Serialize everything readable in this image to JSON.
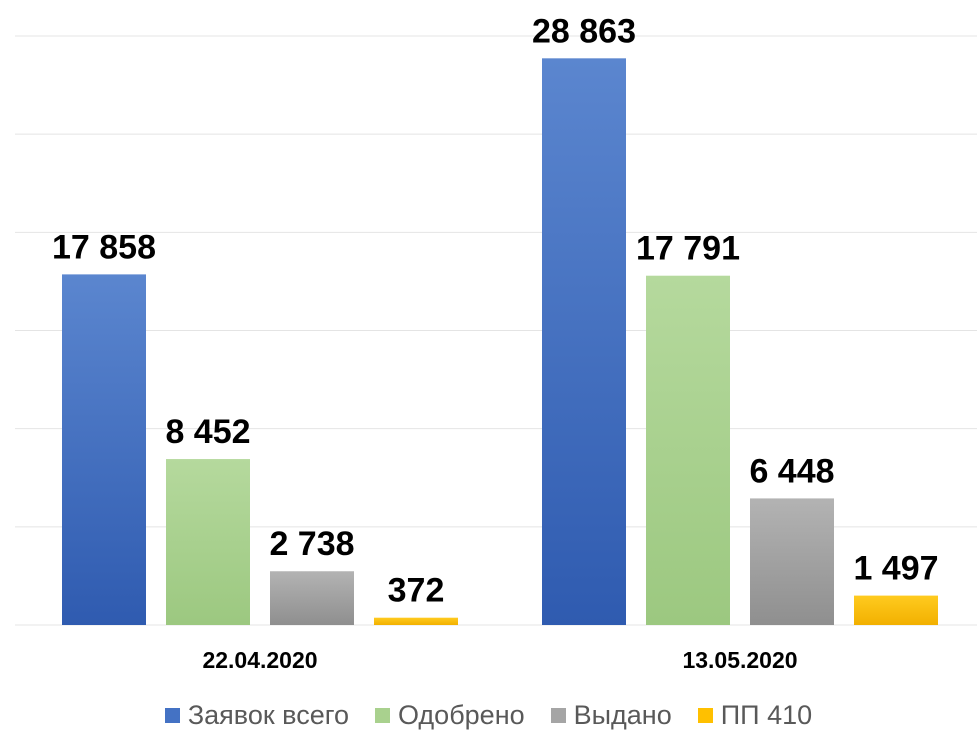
{
  "chart_data": {
    "type": "bar",
    "categories": [
      "22.04.2020",
      "13.05.2020"
    ],
    "series": [
      {
        "name": "Заявок всего",
        "values": [
          17858,
          28863
        ],
        "labels": [
          "17 858",
          "28 863"
        ],
        "color": "#4472c4"
      },
      {
        "name": "Одобрено",
        "values": [
          8452,
          17791
        ],
        "labels": [
          "8 452",
          "17 791"
        ],
        "color": "#a9d18e"
      },
      {
        "name": "Выдано",
        "values": [
          2738,
          6448
        ],
        "labels": [
          "2 738",
          "6 448"
        ],
        "color": "#a5a5a5"
      },
      {
        "name": "ПП 410",
        "values": [
          372,
          1497
        ],
        "labels": [
          "372",
          "1 497"
        ],
        "color": "#ffc000"
      }
    ],
    "ylim": [
      0,
      30000
    ],
    "grid": true,
    "legend_position": "bottom",
    "xlabel": "",
    "ylabel": ""
  }
}
